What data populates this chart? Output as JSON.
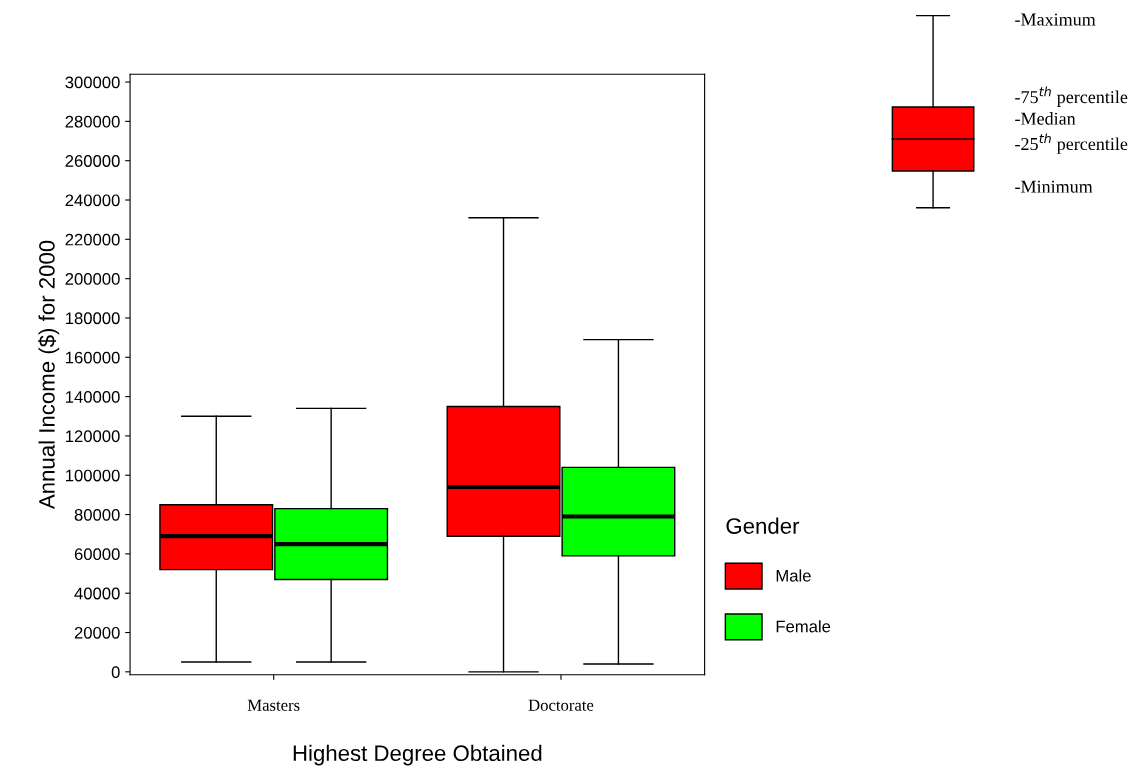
{
  "chart_data": {
    "type": "box",
    "xlabel": "Highest Degree Obtained",
    "ylabel": "Annual Income ($) for 2000",
    "legend_title": "Gender",
    "legend": "right",
    "grid": false,
    "categories": [
      "Masters",
      "Doctorate"
    ],
    "ylim": [
      -1500,
      304000
    ],
    "yticks": [
      0,
      20000,
      40000,
      60000,
      80000,
      100000,
      120000,
      140000,
      160000,
      180000,
      200000,
      220000,
      240000,
      260000,
      280000,
      300000
    ],
    "series": [
      {
        "name": "Male",
        "color": "#ff0000",
        "boxes": [
          {
            "low": 5000,
            "q1": 52000,
            "median": 69000,
            "q3": 85000,
            "high": 130000
          },
          {
            "low": 0,
            "q1": 69000,
            "median": 94000,
            "q3": 135000,
            "high": 231000
          }
        ]
      },
      {
        "name": "Female",
        "color": "#00ff00",
        "boxes": [
          {
            "low": 5000,
            "q1": 47000,
            "median": 65000,
            "q3": 83000,
            "high": 134000
          },
          {
            "low": 4000,
            "q1": 59000,
            "median": 79000,
            "q3": 104000,
            "high": 169000
          }
        ]
      }
    ],
    "annotations": [
      "-Maximum",
      "-75$^{th}$ percentile",
      "-Median",
      "-25$^{th}$ percentile",
      "-Minimum"
    ]
  }
}
